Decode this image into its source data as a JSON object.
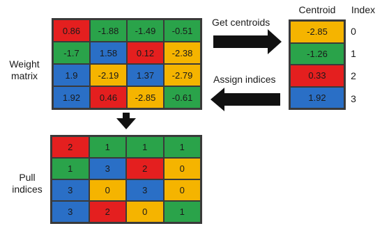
{
  "weight_matrix": {
    "label": "Weight\nmatrix",
    "cells": [
      [
        "0.86",
        "-1.88",
        "-1.49",
        "-0.51"
      ],
      [
        "-1.7",
        "1.58",
        "0.12",
        "-2.38"
      ],
      [
        "1.9",
        "-2.19",
        "1.37",
        "-2.79"
      ],
      [
        "1.92",
        "0.46",
        "-2.85",
        "-0.61"
      ]
    ],
    "cell_colors": [
      [
        "red",
        "green",
        "green",
        "green"
      ],
      [
        "green",
        "blue",
        "red",
        "yellow"
      ],
      [
        "blue",
        "yellow",
        "blue",
        "yellow"
      ],
      [
        "blue",
        "red",
        "yellow",
        "green"
      ]
    ]
  },
  "centroid_table": {
    "centroid_header": "Centroid",
    "index_header": "Index",
    "centroids": [
      "-2.85",
      "-1.26",
      "0.33",
      "1.92"
    ],
    "indices": [
      "0",
      "1",
      "2",
      "3"
    ],
    "colors": [
      "yellow",
      "green",
      "red",
      "blue"
    ]
  },
  "arrows": {
    "get_centroids": "Get centroids",
    "assign_indices": "Assign indices"
  },
  "pull_indices": {
    "label": "Pull\nindices",
    "cells": [
      [
        "2",
        "1",
        "1",
        "1"
      ],
      [
        "1",
        "3",
        "2",
        "0"
      ],
      [
        "3",
        "0",
        "3",
        "0"
      ],
      [
        "3",
        "2",
        "0",
        "1"
      ]
    ],
    "cell_colors": [
      [
        "red",
        "green",
        "green",
        "green"
      ],
      [
        "green",
        "blue",
        "red",
        "yellow"
      ],
      [
        "blue",
        "yellow",
        "blue",
        "yellow"
      ],
      [
        "blue",
        "red",
        "yellow",
        "green"
      ]
    ]
  },
  "colors": {
    "red": "#e41f1f",
    "green": "#2aa34a",
    "blue": "#2a6fc6",
    "yellow": "#f5b400"
  }
}
